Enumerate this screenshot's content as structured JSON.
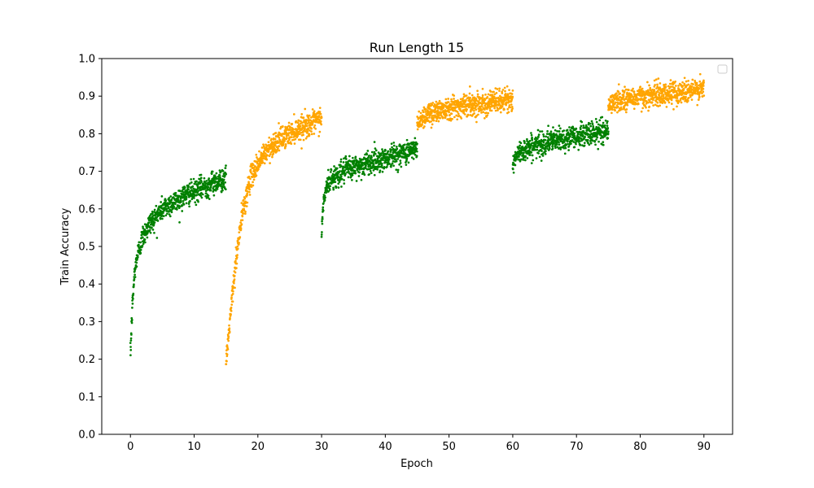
{
  "chart_data": {
    "type": "scatter",
    "title": "Run Length 15",
    "xlabel": "Epoch",
    "ylabel": "Train Accuracy",
    "xlim": [
      -4.5,
      94.5
    ],
    "ylim": [
      0.0,
      1.0
    ],
    "xticks": [
      0,
      10,
      20,
      30,
      40,
      50,
      60,
      70,
      80,
      90
    ],
    "yticks": [
      0.0,
      0.1,
      0.2,
      0.3,
      0.4,
      0.5,
      0.6,
      0.7,
      0.8,
      0.9,
      1.0
    ],
    "grid": false,
    "legend": "top-right (empty)",
    "colors": {
      "green": "#008000",
      "orange": "#ffa500"
    },
    "series": [
      {
        "color": "#008000",
        "x": [
          0.0,
          0.3,
          0.6,
          1.0,
          1.5,
          2.0,
          3.0,
          4.0,
          5.0,
          6.0,
          7.0,
          8.0,
          9.0,
          10.0,
          11.0,
          12.0,
          13.0,
          14.0,
          15.0
        ],
        "y": [
          0.21,
          0.34,
          0.42,
          0.47,
          0.5,
          0.53,
          0.56,
          0.58,
          0.6,
          0.61,
          0.62,
          0.63,
          0.64,
          0.645,
          0.655,
          0.66,
          0.67,
          0.675,
          0.68
        ]
      },
      {
        "color": "#ffa500",
        "x": [
          15.0,
          15.5,
          16.0,
          16.5,
          17.0,
          17.5,
          18.0,
          18.5,
          19.0,
          20.0,
          21.0,
          22.0,
          23.0,
          24.0,
          25.0,
          26.0,
          27.0,
          28.0,
          29.0,
          30.0
        ],
        "y": [
          0.19,
          0.28,
          0.37,
          0.45,
          0.52,
          0.58,
          0.62,
          0.66,
          0.69,
          0.72,
          0.745,
          0.765,
          0.78,
          0.79,
          0.8,
          0.81,
          0.82,
          0.825,
          0.83,
          0.845
        ]
      },
      {
        "color": "#008000",
        "x": [
          30.0,
          30.3,
          30.7,
          31.0,
          32.0,
          33.0,
          34.0,
          35.0,
          36.0,
          37.0,
          38.0,
          39.0,
          40.0,
          41.0,
          42.0,
          43.0,
          44.0,
          45.0
        ],
        "y": [
          0.53,
          0.62,
          0.65,
          0.67,
          0.685,
          0.695,
          0.705,
          0.71,
          0.715,
          0.72,
          0.725,
          0.73,
          0.735,
          0.74,
          0.745,
          0.75,
          0.755,
          0.76
        ]
      },
      {
        "color": "#ffa500",
        "x": [
          45.0,
          46.0,
          47.0,
          48.0,
          49.0,
          50.0,
          51.0,
          52.0,
          53.0,
          54.0,
          55.0,
          56.0,
          57.0,
          58.0,
          59.0,
          60.0
        ],
        "y": [
          0.83,
          0.845,
          0.855,
          0.86,
          0.865,
          0.87,
          0.872,
          0.875,
          0.877,
          0.879,
          0.88,
          0.882,
          0.884,
          0.886,
          0.888,
          0.89
        ]
      },
      {
        "color": "#008000",
        "x": [
          60.0,
          61.0,
          62.0,
          63.0,
          64.0,
          65.0,
          66.0,
          67.0,
          68.0,
          69.0,
          70.0,
          71.0,
          72.0,
          73.0,
          74.0,
          75.0
        ],
        "y": [
          0.72,
          0.75,
          0.76,
          0.765,
          0.77,
          0.775,
          0.78,
          0.783,
          0.786,
          0.79,
          0.793,
          0.796,
          0.8,
          0.803,
          0.806,
          0.81
        ]
      },
      {
        "color": "#ffa500",
        "x": [
          75.0,
          76.0,
          77.0,
          78.0,
          79.0,
          80.0,
          81.0,
          82.0,
          83.0,
          84.0,
          85.0,
          86.0,
          87.0,
          88.0,
          89.0,
          90.0
        ],
        "y": [
          0.875,
          0.885,
          0.89,
          0.893,
          0.896,
          0.898,
          0.9,
          0.902,
          0.904,
          0.906,
          0.908,
          0.91,
          0.912,
          0.914,
          0.916,
          0.918
        ]
      }
    ]
  }
}
